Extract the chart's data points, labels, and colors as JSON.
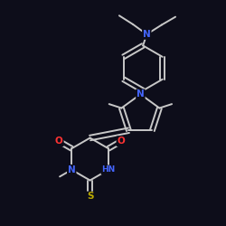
{
  "bg_color": "#0d0d1a",
  "bond_color": "#c8c8c8",
  "N_color": "#4466ff",
  "O_color": "#ff3333",
  "S_color": "#bbaa00",
  "lw": 1.4,
  "figsize": [
    2.5,
    2.5
  ],
  "dpi": 100,
  "xlim": [
    0.0,
    1.0
  ],
  "ylim": [
    0.0,
    1.0
  ]
}
